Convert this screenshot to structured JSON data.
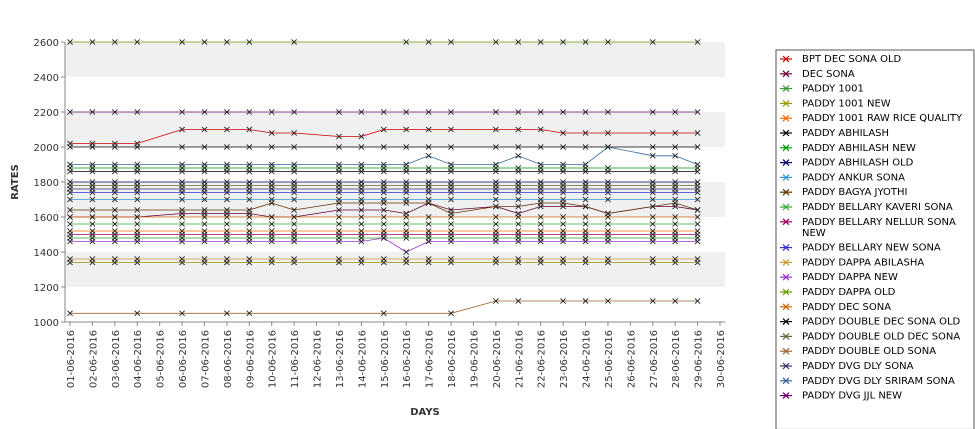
{
  "chart_data": {
    "type": "line",
    "title": "",
    "xlabel": "DAYS",
    "ylabel": "RATES",
    "ylim": [
      1000,
      2600
    ],
    "yticks": [
      1000,
      1200,
      1400,
      1600,
      1800,
      2000,
      2200,
      2400,
      2600
    ],
    "grid": "horizontal alternating bands",
    "legend_position": "right",
    "categories": [
      "01-06-2016",
      "02-06-2016",
      "03-06-2016",
      "04-06-2016",
      "05-06-2016",
      "06-06-2016",
      "07-06-2016",
      "08-06-2016",
      "09-06-2016",
      "10-06-2016",
      "11-06-2016",
      "12-06-2016",
      "13-06-2016",
      "14-06-2016",
      "15-06-2016",
      "16-06-2016",
      "17-06-2016",
      "18-06-2016",
      "19-06-2016",
      "20-06-2016",
      "21-06-2016",
      "22-06-2016",
      "23-06-2016",
      "24-06-2016",
      "25-06-2016",
      "26-06-2016",
      "27-06-2016",
      "28-06-2016",
      "29-06-2016",
      "30-06-2016"
    ],
    "series": [
      {
        "name": "BPT DEC SONA OLD",
        "color": "#cc0000",
        "values": [
          2020,
          2020,
          2020,
          2020,
          null,
          2100,
          2100,
          2100,
          2100,
          2080,
          2080,
          null,
          2060,
          2060,
          2100,
          2100,
          2100,
          2100,
          null,
          2100,
          2100,
          2100,
          2080,
          2080,
          2080,
          null,
          2080,
          2080,
          2080,
          null
        ]
      },
      {
        "name": "DEC SONA",
        "color": "#660033",
        "values": [
          1600,
          1600,
          1600,
          1600,
          null,
          1620,
          1620,
          1620,
          1620,
          1600,
          1600,
          null,
          1640,
          1640,
          1640,
          1620,
          1680,
          1640,
          null,
          1660,
          1620,
          1660,
          1660,
          1660,
          1620,
          null,
          1660,
          1660,
          1640,
          null
        ]
      },
      {
        "name": "PADDY 1001",
        "color": "#339933",
        "values": [
          1480,
          1480,
          1480,
          1480,
          null,
          1480,
          1480,
          1480,
          1480,
          1480,
          1480,
          null,
          1480,
          1480,
          1480,
          1480,
          1480,
          1480,
          null,
          1480,
          1480,
          1480,
          1480,
          1480,
          1480,
          null,
          1480,
          1480,
          1480,
          null
        ]
      },
      {
        "name": "PADDY 1001 NEW",
        "color": "#999900",
        "values": [
          1340,
          1340,
          1340,
          1340,
          null,
          1340,
          1340,
          1340,
          1340,
          1340,
          1340,
          null,
          1340,
          1340,
          1340,
          1340,
          1340,
          1340,
          null,
          1340,
          1340,
          1340,
          1340,
          1340,
          1340,
          null,
          1340,
          1340,
          1340,
          null
        ]
      },
      {
        "name": "PADDY 1001 RAW RICE QUALITY",
        "color": "#ff6600",
        "values": [
          1520,
          1520,
          1520,
          1520,
          null,
          1520,
          1520,
          1520,
          1520,
          1520,
          1520,
          null,
          1520,
          1520,
          1520,
          1520,
          1520,
          1520,
          null,
          1520,
          1520,
          1520,
          1520,
          1520,
          1520,
          null,
          1520,
          1520,
          1520,
          null
        ]
      },
      {
        "name": "PADDY ABHILASH",
        "color": "#000000",
        "values": [
          1860,
          1860,
          1860,
          1860,
          null,
          1860,
          1860,
          1860,
          1860,
          1860,
          1860,
          null,
          1860,
          1860,
          1860,
          1860,
          1860,
          1860,
          null,
          1860,
          1860,
          1860,
          1860,
          1860,
          1860,
          null,
          1860,
          1860,
          1860,
          null
        ]
      },
      {
        "name": "PADDY ABHILASH NEW",
        "color": "#009900",
        "values": [
          1880,
          1880,
          1880,
          1880,
          null,
          1880,
          1880,
          1880,
          1880,
          1880,
          1880,
          null,
          1880,
          1880,
          1880,
          1880,
          1880,
          1880,
          null,
          1880,
          1880,
          1880,
          1880,
          1880,
          1880,
          null,
          1880,
          1880,
          1880,
          null
        ]
      },
      {
        "name": "PADDY ABHILASH OLD",
        "color": "#000066",
        "values": [
          1800,
          1800,
          1800,
          1800,
          null,
          1800,
          1800,
          1800,
          1800,
          1800,
          1800,
          null,
          1800,
          1800,
          1800,
          1800,
          1800,
          1800,
          null,
          1800,
          1800,
          1800,
          1800,
          1800,
          1800,
          null,
          1800,
          1800,
          1800,
          null
        ]
      },
      {
        "name": "PADDY ANKUR SONA",
        "color": "#3399cc",
        "values": [
          1700,
          1700,
          1700,
          1700,
          null,
          1700,
          1700,
          1700,
          1700,
          1700,
          1700,
          null,
          1700,
          1700,
          1700,
          1700,
          1700,
          1700,
          null,
          1700,
          1700,
          1700,
          1700,
          1700,
          1700,
          null,
          1700,
          1700,
          1700,
          null
        ]
      },
      {
        "name": "PADDY BAGYA JYOTHI",
        "color": "#663300",
        "values": [
          1640,
          1640,
          1640,
          1640,
          null,
          1640,
          1640,
          1640,
          1640,
          1680,
          1640,
          null,
          1680,
          1680,
          1680,
          1680,
          1680,
          1620,
          null,
          1660,
          1660,
          1680,
          1680,
          1660,
          1620,
          null,
          1660,
          1680,
          1640,
          null
        ]
      },
      {
        "name": "PADDY BELLARY KAVERI SONA",
        "color": "#33aa33",
        "values": [
          1560,
          1560,
          1560,
          1560,
          null,
          1560,
          1560,
          1560,
          1560,
          1560,
          1560,
          null,
          1560,
          1560,
          1560,
          1560,
          1560,
          1560,
          null,
          1560,
          1560,
          1560,
          1560,
          1560,
          1560,
          null,
          1560,
          1560,
          1560,
          null
        ]
      },
      {
        "name": "PADDY BELLARY NELLUR SONA NEW",
        "color": "#990066",
        "values": [
          1500,
          1500,
          1500,
          1500,
          null,
          1500,
          1500,
          1500,
          1500,
          1500,
          1500,
          null,
          1500,
          1500,
          1500,
          1500,
          1500,
          1500,
          null,
          1500,
          1500,
          1500,
          1500,
          1500,
          1500,
          null,
          1500,
          1500,
          1500,
          null
        ]
      },
      {
        "name": "PADDY BELLARY NEW SONA",
        "color": "#3333cc",
        "values": [
          1740,
          1740,
          1740,
          1740,
          null,
          1740,
          1740,
          1740,
          1740,
          1740,
          1740,
          null,
          1740,
          1740,
          1740,
          1740,
          1740,
          1740,
          null,
          1740,
          1740,
          1740,
          1740,
          1740,
          1740,
          null,
          1740,
          1740,
          1740,
          null
        ]
      },
      {
        "name": "PADDY DAPPA ABILASHA",
        "color": "#cc9933",
        "values": [
          1360,
          1360,
          1360,
          1360,
          null,
          1360,
          1360,
          1360,
          1360,
          1360,
          1360,
          null,
          1360,
          1360,
          1360,
          1360,
          1360,
          1360,
          null,
          1360,
          1360,
          1360,
          1360,
          1360,
          1360,
          null,
          1360,
          1360,
          1360,
          null
        ]
      },
      {
        "name": "PADDY DAPPA NEW",
        "color": "#9933cc",
        "values": [
          1460,
          1460,
          1460,
          1460,
          null,
          1460,
          1460,
          1460,
          1460,
          1460,
          1460,
          null,
          1460,
          1460,
          1480,
          1400,
          1460,
          1460,
          null,
          1460,
          1460,
          1460,
          1460,
          1460,
          1460,
          null,
          1460,
          1460,
          1460,
          null
        ]
      },
      {
        "name": "PADDY DAPPA OLD",
        "color": "#669900",
        "values": [
          2600,
          2600,
          2600,
          2600,
          null,
          2600,
          2600,
          2600,
          2600,
          null,
          2600,
          null,
          null,
          null,
          null,
          2600,
          2600,
          2600,
          null,
          2600,
          2600,
          2600,
          2600,
          2600,
          2600,
          null,
          2600,
          null,
          2600,
          null
        ]
      },
      {
        "name": "PADDY DEC SONA",
        "color": "#cc6600",
        "values": [
          1600,
          1600,
          1600,
          1600,
          null,
          1600,
          1600,
          1600,
          1600,
          1600,
          1600,
          null,
          1600,
          1600,
          1600,
          1600,
          1600,
          1600,
          null,
          1600,
          1600,
          1600,
          1600,
          1600,
          1600,
          null,
          1600,
          1600,
          1600,
          null
        ]
      },
      {
        "name": "PADDY DOUBLE DEC SONA OLD",
        "color": "#000000",
        "values": [
          2000,
          2000,
          2000,
          2000,
          null,
          2000,
          2000,
          2000,
          2000,
          2000,
          2000,
          null,
          2000,
          2000,
          2000,
          2000,
          2000,
          2000,
          null,
          2000,
          2000,
          2000,
          2000,
          2000,
          2000,
          null,
          2000,
          2000,
          2000,
          null
        ]
      },
      {
        "name": "PADDY DOUBLE OLD DEC SONA",
        "color": "#666633",
        "values": [
          1780,
          1780,
          1780,
          1780,
          null,
          1780,
          1780,
          1780,
          1780,
          1780,
          1780,
          null,
          1780,
          1780,
          1780,
          1780,
          1780,
          1780,
          null,
          1780,
          1780,
          1780,
          1780,
          1780,
          1780,
          null,
          1780,
          1780,
          1780,
          null
        ]
      },
      {
        "name": "PADDY DOUBLE OLD SONA",
        "color": "#996633",
        "values": [
          1050,
          null,
          null,
          1050,
          null,
          1050,
          null,
          1050,
          1050,
          null,
          null,
          null,
          null,
          null,
          1050,
          null,
          null,
          1050,
          null,
          1120,
          1120,
          null,
          1120,
          1120,
          1120,
          null,
          1120,
          1120,
          1120,
          null
        ]
      },
      {
        "name": "PADDY DVG DLY SONA",
        "color": "#333366",
        "values": [
          1760,
          1760,
          1760,
          1760,
          null,
          1760,
          1760,
          1760,
          1760,
          1760,
          1760,
          null,
          1760,
          1760,
          1760,
          1760,
          1760,
          1760,
          null,
          1760,
          1760,
          1760,
          1760,
          1760,
          1760,
          null,
          1760,
          1760,
          1760,
          null
        ]
      },
      {
        "name": "PADDY DVG DLY SRIRAM SONA",
        "color": "#336699",
        "values": [
          1900,
          1900,
          1900,
          1900,
          null,
          1900,
          1900,
          1900,
          1900,
          1900,
          1900,
          null,
          1900,
          1900,
          1900,
          1900,
          1950,
          1900,
          null,
          1900,
          1950,
          1900,
          1900,
          1900,
          2000,
          null,
          1950,
          1950,
          1900,
          null
        ]
      },
      {
        "name": "PADDY DVG JJL NEW",
        "color": "#660066",
        "values": [
          2200,
          2200,
          2200,
          2200,
          null,
          2200,
          2200,
          2200,
          2200,
          2200,
          2200,
          null,
          2200,
          2200,
          2200,
          2200,
          2200,
          2200,
          null,
          2200,
          2200,
          2200,
          2200,
          2200,
          2200,
          null,
          2200,
          2200,
          2200,
          null
        ]
      }
    ]
  }
}
